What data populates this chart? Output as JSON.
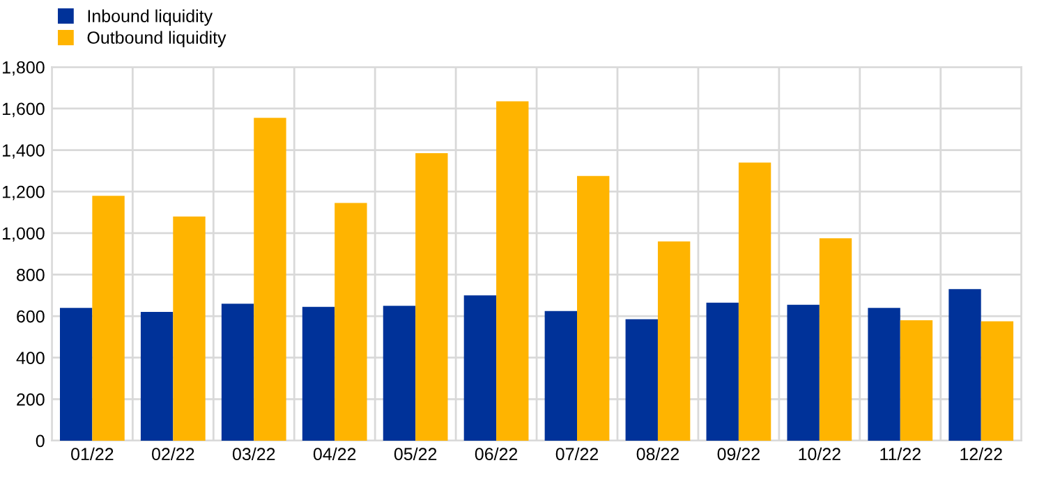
{
  "chart_data": {
    "type": "bar",
    "categories": [
      "01/22",
      "02/22",
      "03/22",
      "04/22",
      "05/22",
      "06/22",
      "07/22",
      "08/22",
      "09/22",
      "10/22",
      "11/22",
      "12/22"
    ],
    "series": [
      {
        "name": "Inbound liquidity",
        "color": "#003299",
        "values": [
          640,
          620,
          660,
          645,
          650,
          700,
          625,
          585,
          665,
          655,
          640,
          730
        ]
      },
      {
        "name": "Outbound liquidity",
        "color": "#ffb400",
        "values": [
          1180,
          1080,
          1555,
          1145,
          1385,
          1635,
          1275,
          960,
          1340,
          975,
          580,
          575
        ]
      }
    ],
    "ylim": [
      0,
      1800
    ],
    "yticks": [
      0,
      {
        "value": 200,
        "label": "200"
      },
      {
        "value": 400,
        "label": "400"
      },
      {
        "value": 600,
        "label": "600"
      },
      {
        "value": 800,
        "label": "800"
      },
      {
        "value": 1000,
        "label": "1,000"
      },
      {
        "value": 1200,
        "label": "1,200"
      },
      {
        "value": 1400,
        "label": "1,400"
      },
      {
        "value": 1600,
        "label": "1,600"
      },
      {
        "value": 1800,
        "label": "1,800"
      }
    ],
    "grid": true,
    "legend": "top left"
  }
}
